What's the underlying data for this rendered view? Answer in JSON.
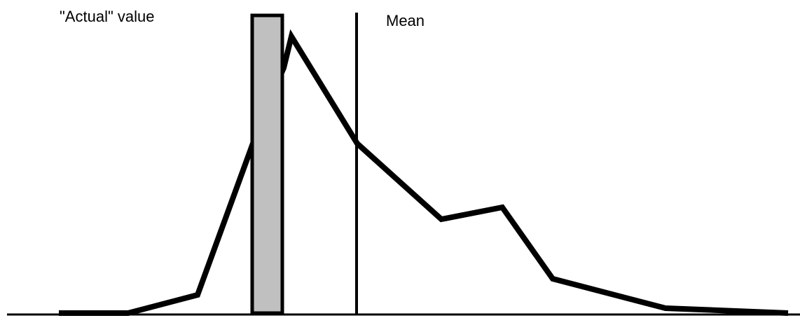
{
  "labels": {
    "actual": "\"Actual\" value",
    "mean": "Mean"
  },
  "colors": {
    "curve": "#000000",
    "actual_bar_fill": "#c0c0c0",
    "actual_bar_stroke": "#000000",
    "mean_line": "#000000",
    "baseline": "#000000",
    "background": "#ffffff"
  }
}
